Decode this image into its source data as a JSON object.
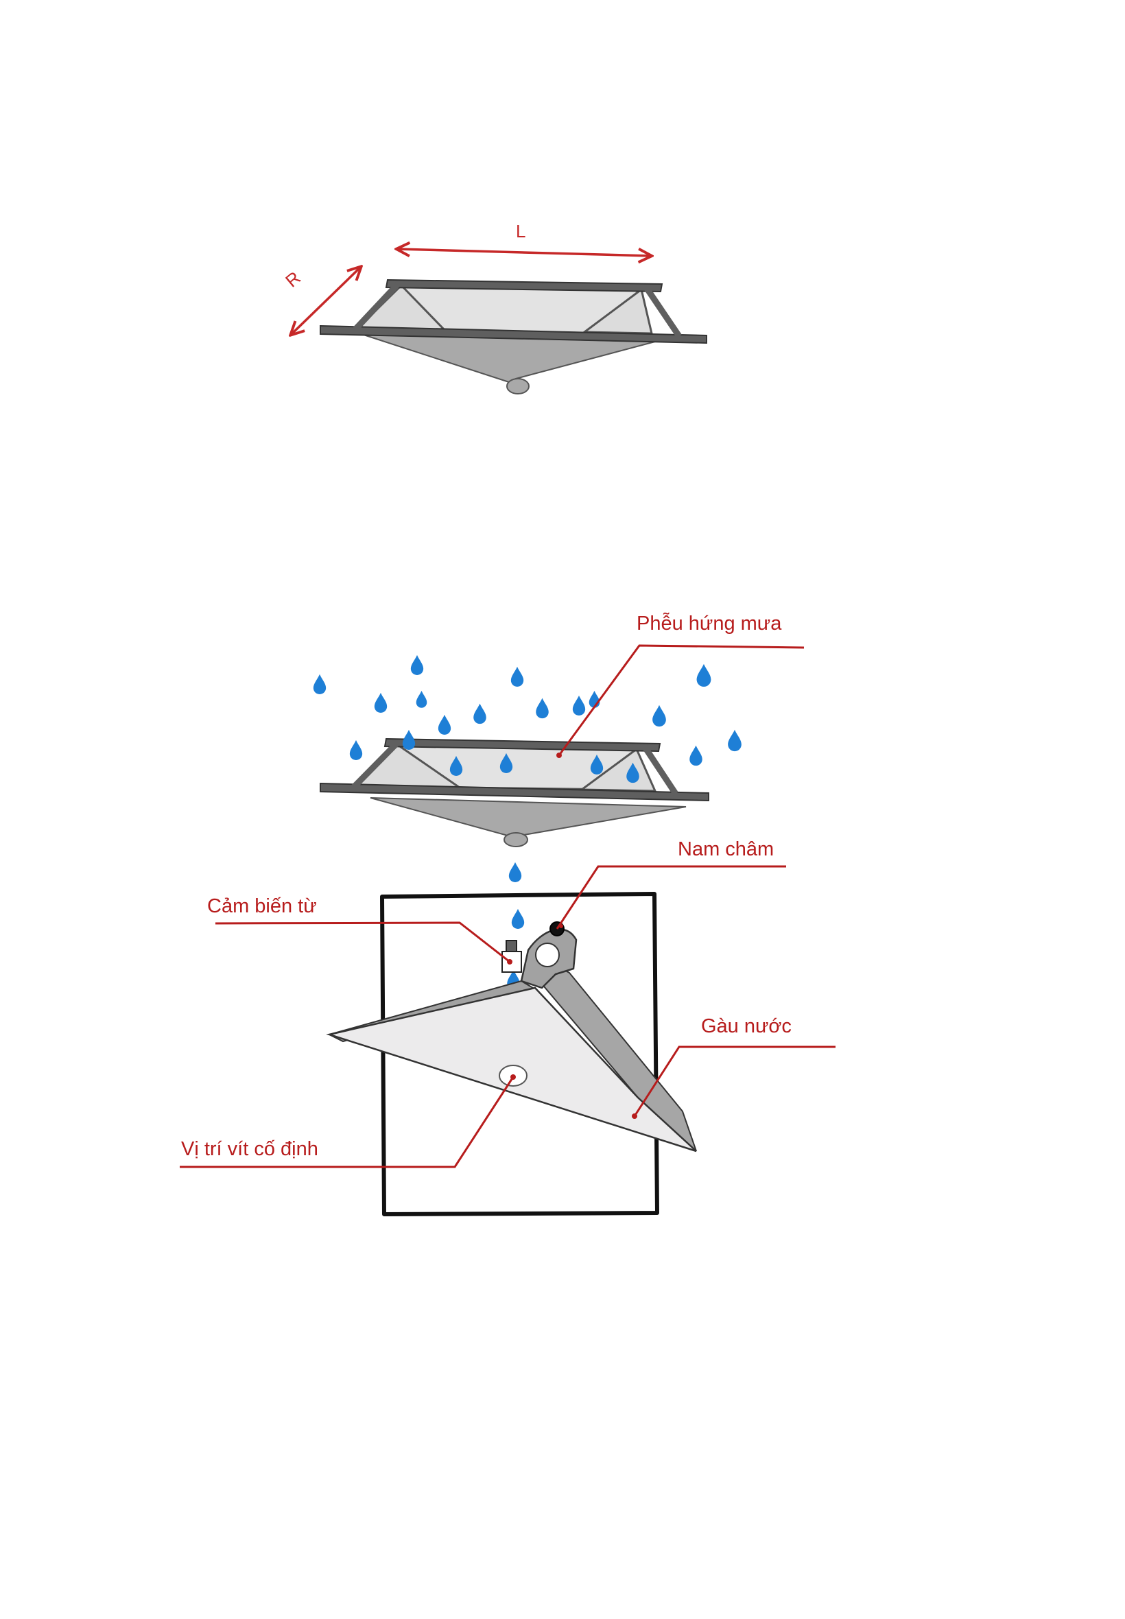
{
  "diagram": {
    "dimensions": {
      "length_label": "L",
      "width_label": "R"
    },
    "labels": {
      "funnel": "Phễu hứng mưa",
      "magnet": "Nam châm",
      "magnetic_sensor": "Cảm biến từ",
      "bucket": "Gàu nước",
      "fixing_screw": "Vị trí vít cố định"
    },
    "colors": {
      "label_red": "#b71c1c",
      "arrow_red": "#c62828",
      "frame_gray": "#5f5f5f",
      "funnel_gray": "#a9a9a9",
      "raindrop_blue": "#1e7fd6",
      "bucket_light": "#ecebec",
      "bucket_dark": "#a2a2a2"
    }
  }
}
